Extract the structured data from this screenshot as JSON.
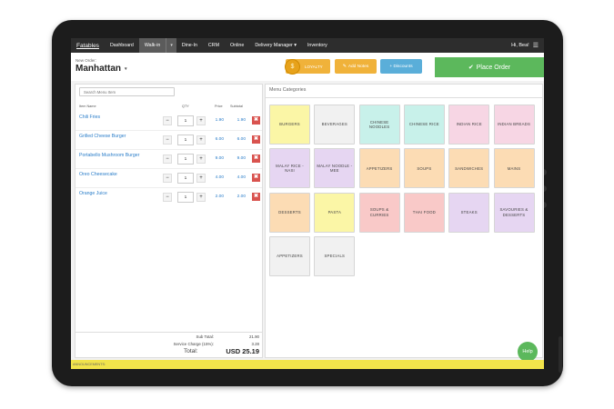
{
  "nav": {
    "brand": "Fatables",
    "items": [
      "Dashboard",
      "Walk-in",
      "Dine-In",
      "CRM",
      "Online",
      "Delivery Manager ▾",
      "Inventory"
    ],
    "caret": "▾",
    "greeting": "Hi, Bea!"
  },
  "header": {
    "order_label": "New Order:",
    "location": "Manhattan",
    "loyalty_label": "LOYALTY",
    "add_notes_label": "Add Notes",
    "discounts_label": "+ Discounts",
    "place_order_label": "Place Order"
  },
  "order": {
    "search_placeholder": "Search Menu Item",
    "columns": {
      "name": "Item Name",
      "qty": "QTY",
      "price": "Price",
      "subtotal": "Subtotal"
    },
    "items": [
      {
        "name": "Chili Fries",
        "qty": "1",
        "price": "1.90",
        "subtotal": "1.90"
      },
      {
        "name": "Grilled Cheese Burger",
        "qty": "1",
        "price": "6.00",
        "subtotal": "6.00"
      },
      {
        "name": "Portabello Mushroom Burger",
        "qty": "1",
        "price": "9.00",
        "subtotal": "9.00"
      },
      {
        "name": "Oreo Cheesecake",
        "qty": "1",
        "price": "4.00",
        "subtotal": "4.00"
      },
      {
        "name": "Orange Juice",
        "qty": "1",
        "price": "2.00",
        "subtotal": "2.00"
      }
    ],
    "sub_total_label": "Sub Total:",
    "sub_total": "21.90",
    "service_label": "Service Charge (15%):",
    "service": "3.28",
    "total_label": "Total:",
    "total": "USD 25.19"
  },
  "categories": {
    "title": "Menu Categories",
    "tiles": [
      {
        "label": "BURGERS",
        "color": "#fbf6a6"
      },
      {
        "label": "BEVERAGES",
        "color": "#f1f1f1"
      },
      {
        "label": "CHINESE NOODLES",
        "color": "#c8f1ea"
      },
      {
        "label": "CHINESE RICE",
        "color": "#c8f1ea"
      },
      {
        "label": "INDIAN RICE",
        "color": "#f7d6e4"
      },
      {
        "label": "INDIAN BREADS",
        "color": "#f7d6e4"
      },
      {
        "label": "MALAY RICE - NASI",
        "color": "#e6d6f2"
      },
      {
        "label": "MALAY NOODLE - MEE",
        "color": "#e6d6f2"
      },
      {
        "label": "APPETIZERS",
        "color": "#fcdcb4"
      },
      {
        "label": "SOUPS",
        "color": "#fcdcb4"
      },
      {
        "label": "SANDWICHES",
        "color": "#fcdcb4"
      },
      {
        "label": "MAINS",
        "color": "#fcdcb4"
      },
      {
        "label": "DESSERTS",
        "color": "#fcdcb4"
      },
      {
        "label": "PASTA",
        "color": "#fbf6a6"
      },
      {
        "label": "SOUPS & CURRIES",
        "color": "#f9c9c8"
      },
      {
        "label": "THAI FOOD",
        "color": "#f9c9c8"
      },
      {
        "label": "STEAKS",
        "color": "#e6d6f2"
      },
      {
        "label": "SAVOURIES & DESSERTS",
        "color": "#e6d6f2"
      },
      {
        "label": "APPETIZERS",
        "color": "#f1f1f1"
      },
      {
        "label": "SPECIALS",
        "color": "#f1f1f1"
      }
    ]
  },
  "help_label": "Help",
  "announcements_label": "ANNOUNCEMENTS:",
  "icons": {
    "check": "✔",
    "pencil": "✎",
    "close": "✖",
    "menu": "☰",
    "coin": "⬤"
  }
}
